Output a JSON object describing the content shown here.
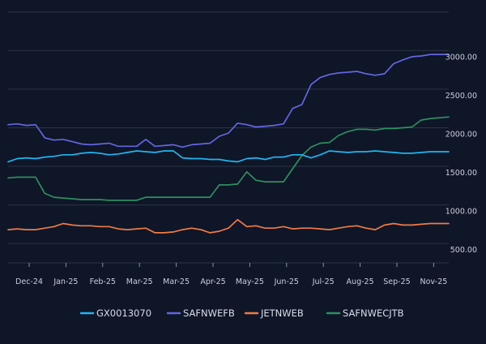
{
  "chart_data": {
    "type": "line",
    "title": "",
    "xlabel": "",
    "ylabel": "",
    "x_tick_labels": [
      "Dec-24",
      "Jan-25",
      "Feb-25",
      "Mar-25",
      "Mar-25",
      "Apr-25",
      "May-25",
      "Jun-25",
      "Jul-25",
      "Aug-25",
      "Sep-25",
      "Nov-25"
    ],
    "y_ticks": [
      {
        "value": 500,
        "label": "500.00"
      },
      {
        "value": 1000,
        "label": "1000.00"
      },
      {
        "value": 1500,
        "label": "1500.00"
      },
      {
        "value": 2000,
        "label": "2000.00"
      },
      {
        "value": 2500,
        "label": "2500.00"
      },
      {
        "value": 3000,
        "label": "3000.00"
      }
    ],
    "ylim": [
      250,
      3550
    ],
    "x_range": [
      0,
      48
    ],
    "grid": true,
    "legend_position": "bottom",
    "series": [
      {
        "name": "GX0013070",
        "color": "#1eb6f0",
        "values": [
          1560,
          1600,
          1610,
          1600,
          1620,
          1630,
          1650,
          1650,
          1670,
          1680,
          1670,
          1650,
          1660,
          1680,
          1700,
          1690,
          1680,
          1700,
          1700,
          1610,
          1600,
          1600,
          1590,
          1590,
          1570,
          1560,
          1600,
          1610,
          1590,
          1620,
          1620,
          1650,
          1650,
          1610,
          1650,
          1700,
          1690,
          1680,
          1690,
          1690,
          1700,
          1690,
          1680,
          1670,
          1670,
          1680,
          1690,
          1690,
          1690
        ]
      },
      {
        "name": "SAFNWEFB",
        "color": "#6366e0",
        "values": [
          2040,
          2050,
          2030,
          2040,
          1870,
          1840,
          1850,
          1820,
          1790,
          1780,
          1790,
          1800,
          1760,
          1760,
          1760,
          1850,
          1760,
          1770,
          1780,
          1750,
          1780,
          1790,
          1800,
          1890,
          1930,
          2060,
          2040,
          2010,
          2020,
          2030,
          2050,
          2250,
          2300,
          2560,
          2650,
          2690,
          2710,
          2720,
          2730,
          2700,
          2680,
          2700,
          2830,
          2880,
          2920,
          2930,
          2950,
          2950,
          2950
        ]
      },
      {
        "name": "JETNWEB",
        "color": "#f27a43",
        "values": [
          680,
          690,
          680,
          680,
          700,
          720,
          760,
          740,
          730,
          730,
          720,
          720,
          690,
          680,
          690,
          700,
          640,
          640,
          650,
          680,
          700,
          680,
          640,
          660,
          700,
          810,
          720,
          730,
          700,
          700,
          720,
          690,
          700,
          700,
          690,
          680,
          700,
          720,
          730,
          700,
          680,
          740,
          760,
          740,
          740,
          750,
          760,
          760,
          760
        ]
      },
      {
        "name": "SAFNWECJTB",
        "color": "#2e8f5e",
        "values": [
          1350,
          1360,
          1360,
          1360,
          1150,
          1100,
          1090,
          1080,
          1070,
          1070,
          1070,
          1060,
          1060,
          1060,
          1060,
          1100,
          1100,
          1100,
          1100,
          1100,
          1100,
          1100,
          1100,
          1260,
          1260,
          1270,
          1430,
          1320,
          1300,
          1300,
          1300,
          1470,
          1640,
          1750,
          1800,
          1810,
          1900,
          1950,
          1980,
          1980,
          1970,
          1990,
          1990,
          2000,
          2010,
          2100,
          2120,
          2130,
          2140
        ]
      }
    ]
  }
}
